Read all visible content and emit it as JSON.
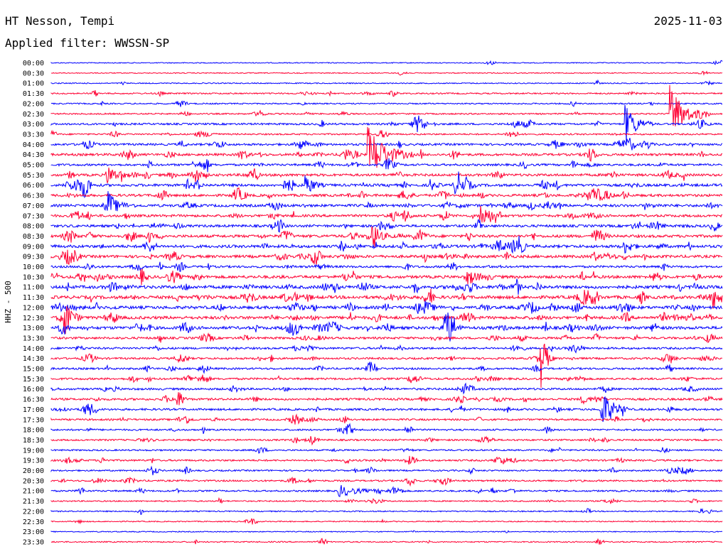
{
  "header": {
    "station": "HT Nesson, Tempi",
    "date": "2025-11-03",
    "filter_label": "Applied filter: WWSSN-SP"
  },
  "colors": {
    "blue": "#0000ff",
    "red": "#ff0033",
    "text": "#000000",
    "background": "#ffffff"
  },
  "chart_data": {
    "type": "line",
    "title": "HT Nesson, Tempi",
    "ylabel": "HHZ - 500",
    "xlabel": "",
    "grid": false,
    "legend": "none",
    "row_minutes": 30,
    "rows": [
      {
        "time": "00:00",
        "color": "blue",
        "activity": 0.1
      },
      {
        "time": "00:30",
        "color": "red",
        "activity": 0.1
      },
      {
        "time": "01:00",
        "color": "blue",
        "activity": 0.15
      },
      {
        "time": "01:30",
        "color": "red",
        "activity": 0.3
      },
      {
        "time": "02:00",
        "color": "blue",
        "activity": 0.25
      },
      {
        "time": "02:30",
        "color": "red",
        "activity": 0.3
      },
      {
        "time": "03:00",
        "color": "blue",
        "activity": 0.5
      },
      {
        "time": "03:30",
        "color": "red",
        "activity": 0.35
      },
      {
        "time": "04:00",
        "color": "blue",
        "activity": 0.6
      },
      {
        "time": "04:30",
        "color": "red",
        "activity": 0.7
      },
      {
        "time": "05:00",
        "color": "blue",
        "activity": 0.6
      },
      {
        "time": "05:30",
        "color": "red",
        "activity": 0.75
      },
      {
        "time": "06:00",
        "color": "blue",
        "activity": 0.8
      },
      {
        "time": "06:30",
        "color": "red",
        "activity": 0.75
      },
      {
        "time": "07:00",
        "color": "blue",
        "activity": 0.8
      },
      {
        "time": "07:30",
        "color": "red",
        "activity": 0.75
      },
      {
        "time": "08:00",
        "color": "blue",
        "activity": 0.75
      },
      {
        "time": "08:30",
        "color": "red",
        "activity": 0.85
      },
      {
        "time": "09:00",
        "color": "blue",
        "activity": 0.9
      },
      {
        "time": "09:30",
        "color": "red",
        "activity": 0.85
      },
      {
        "time": "10:00",
        "color": "blue",
        "activity": 0.6
      },
      {
        "time": "10:30",
        "color": "red",
        "activity": 0.9
      },
      {
        "time": "11:00",
        "color": "blue",
        "activity": 1.0
      },
      {
        "time": "11:30",
        "color": "red",
        "activity": 1.0
      },
      {
        "time": "12:00",
        "color": "blue",
        "activity": 0.95
      },
      {
        "time": "12:30",
        "color": "red",
        "activity": 0.95
      },
      {
        "time": "13:00",
        "color": "blue",
        "activity": 0.95
      },
      {
        "time": "13:30",
        "color": "red",
        "activity": 0.6
      },
      {
        "time": "14:00",
        "color": "blue",
        "activity": 0.55
      },
      {
        "time": "14:30",
        "color": "red",
        "activity": 0.5
      },
      {
        "time": "15:00",
        "color": "blue",
        "activity": 0.5
      },
      {
        "time": "15:30",
        "color": "red",
        "activity": 0.55
      },
      {
        "time": "16:00",
        "color": "blue",
        "activity": 0.55
      },
      {
        "time": "16:30",
        "color": "red",
        "activity": 0.6
      },
      {
        "time": "17:00",
        "color": "blue",
        "activity": 0.55
      },
      {
        "time": "17:30",
        "color": "red",
        "activity": 0.45
      },
      {
        "time": "18:00",
        "color": "blue",
        "activity": 0.4
      },
      {
        "time": "18:30",
        "color": "red",
        "activity": 0.4
      },
      {
        "time": "19:00",
        "color": "blue",
        "activity": 0.35
      },
      {
        "time": "19:30",
        "color": "red",
        "activity": 0.45
      },
      {
        "time": "20:00",
        "color": "blue",
        "activity": 0.35
      },
      {
        "time": "20:30",
        "color": "red",
        "activity": 0.4
      },
      {
        "time": "21:00",
        "color": "blue",
        "activity": 0.4
      },
      {
        "time": "21:30",
        "color": "red",
        "activity": 0.25
      },
      {
        "time": "22:00",
        "color": "blue",
        "activity": 0.2
      },
      {
        "time": "22:30",
        "color": "red",
        "activity": 0.15
      },
      {
        "time": "23:00",
        "color": "blue",
        "activity": 0.1
      },
      {
        "time": "23:30",
        "color": "red",
        "activity": 0.2
      }
    ],
    "events": [
      {
        "row": 5,
        "minute": 27.7,
        "amp": 40,
        "dur": 1.5
      },
      {
        "row": 9,
        "minute": 14.2,
        "amp": 38,
        "dur": 2.0
      },
      {
        "row": 11,
        "minute": 2.5,
        "amp": 14,
        "dur": 1.2
      },
      {
        "row": 12,
        "minute": 11.4,
        "amp": 16,
        "dur": 0.8
      },
      {
        "row": 12,
        "minute": 18.2,
        "amp": 14,
        "dur": 0.8
      },
      {
        "row": 12,
        "minute": 17.0,
        "amp": 8,
        "dur": 0.5
      },
      {
        "row": 12,
        "minute": 18.5,
        "amp": 8,
        "dur": 0.5
      },
      {
        "row": 12,
        "minute": 18.0,
        "amp": 14,
        "dur": 0.5
      },
      {
        "row": 14,
        "minute": 2.6,
        "amp": 14,
        "dur": 1.2
      },
      {
        "row": 15,
        "minute": 19.2,
        "amp": 20,
        "dur": 1.0
      },
      {
        "row": 25,
        "minute": 0.6,
        "amp": 28,
        "dur": 0.8
      },
      {
        "row": 26,
        "minute": 17.6,
        "amp": 30,
        "dur": 0.8
      },
      {
        "row": 29,
        "minute": 21.9,
        "amp": 42,
        "dur": 0.6
      },
      {
        "row": 34,
        "minute": 24.6,
        "amp": 24,
        "dur": 1.2
      },
      {
        "row": 6,
        "minute": 25.7,
        "amp": 28,
        "dur": 1.2
      },
      {
        "row": 23,
        "minute": 29.6,
        "amp": 12,
        "dur": 0.8
      },
      {
        "row": 24,
        "minute": 16.7,
        "amp": 10,
        "dur": 0.8
      },
      {
        "row": 42,
        "minute": 12.9,
        "amp": 8,
        "dur": 2.0
      }
    ]
  },
  "axis": {
    "channel_label": "HHZ - 500"
  }
}
